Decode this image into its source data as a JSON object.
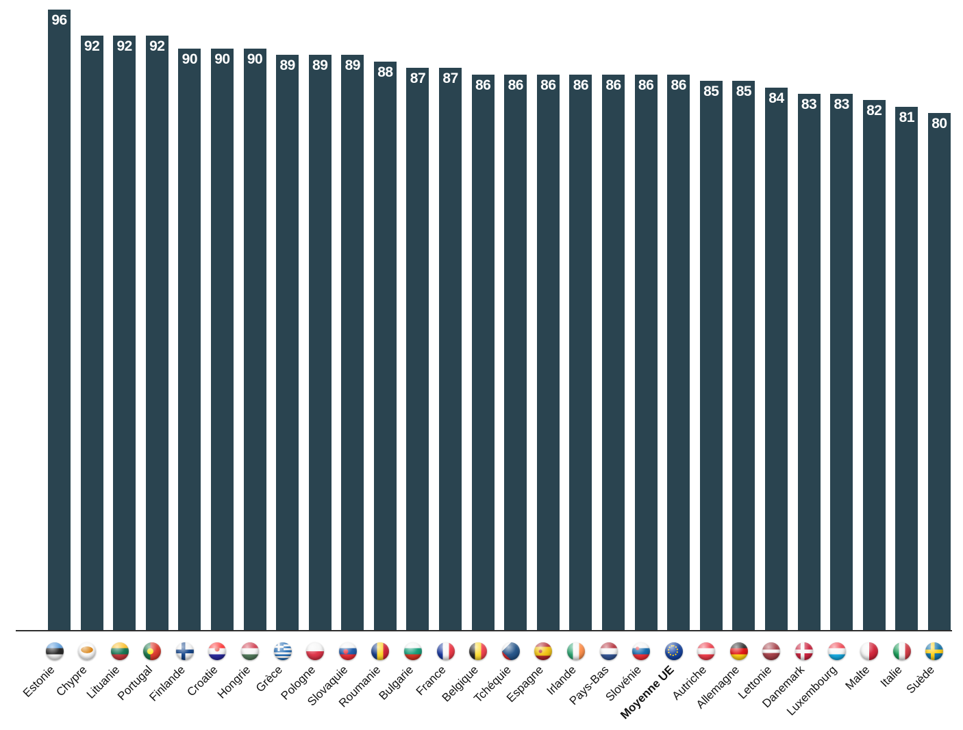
{
  "chart_data": {
    "type": "bar",
    "title": "",
    "xlabel": "",
    "ylabel": "",
    "ylim": [
      0,
      100
    ],
    "grid": false,
    "legend": null,
    "bar_color": "#2A4450",
    "value_label_color": "#FFFFFF",
    "axis_line_color": "#2E2E2E",
    "category_label_color": "#121212",
    "bold_category": "Moyenne UE",
    "categories": [
      "Estonie",
      "Chypre",
      "Lituanie",
      "Portugal",
      "Finlande",
      "Croatie",
      "Hongrie",
      "Grèce",
      "Pologne",
      "Slovaquie",
      "Roumanie",
      "Bulgarie",
      "France",
      "Belgique",
      "Tchéquie",
      "Espagne",
      "Irlande",
      "Pays-Bas",
      "Slovénie",
      "Moyenne UE",
      "Autriche",
      "Allemagne",
      "Lettonie",
      "Danemark",
      "Luxembourg",
      "Malte",
      "Italie",
      "Suède"
    ],
    "values": [
      96,
      92,
      92,
      92,
      90,
      90,
      90,
      89,
      89,
      89,
      88,
      87,
      87,
      86,
      86,
      86,
      86,
      86,
      86,
      86,
      85,
      85,
      84,
      83,
      83,
      82,
      81,
      80
    ],
    "flags": [
      {
        "country": "Estonie",
        "type": "h",
        "colors": [
          "#4891D9",
          "#141414",
          "#F5F5F5"
        ]
      },
      {
        "country": "Chypre",
        "type": "cyprus",
        "bg": "#FAFAFA",
        "emblem": "#D57800"
      },
      {
        "country": "Lituanie",
        "type": "h",
        "colors": [
          "#FDB913",
          "#006A44",
          "#C1272D"
        ]
      },
      {
        "country": "Portugal",
        "type": "v",
        "colors": [
          "#046A38",
          "#DA291C"
        ],
        "widths": [
          40,
          60
        ],
        "emblem": {
          "color": "#FFE600",
          "x": 40,
          "y": 50,
          "r": 5
        }
      },
      {
        "country": "Finlande",
        "type": "cross",
        "bg": "#F5F5F5",
        "cross": "#003580"
      },
      {
        "country": "Croatie",
        "type": "h",
        "colors": [
          "#FF2020",
          "#F5F5F5",
          "#171796"
        ],
        "emblem": {
          "color": "#E03C31",
          "x": 50,
          "y": 38,
          "r": 4
        }
      },
      {
        "country": "Hongrie",
        "type": "h",
        "colors": [
          "#CD2A3E",
          "#F5F5F5",
          "#436F4D"
        ]
      },
      {
        "country": "Grèce",
        "type": "greece",
        "blue": "#0D5EAF",
        "white": "#F5F5F5"
      },
      {
        "country": "Pologne",
        "type": "h",
        "colors": [
          "#F5F5F5",
          "#DC2339"
        ]
      },
      {
        "country": "Slovaquie",
        "type": "h",
        "colors": [
          "#F5F5F5",
          "#0B4EA2",
          "#EE1C25"
        ],
        "emblem": {
          "color": "#EE1C25",
          "x": 38,
          "y": 52,
          "r": 4
        }
      },
      {
        "country": "Roumanie",
        "type": "v",
        "colors": [
          "#002B7F",
          "#FCD116",
          "#CE1126"
        ]
      },
      {
        "country": "Bulgarie",
        "type": "h",
        "colors": [
          "#F5F5F5",
          "#00966E",
          "#D62612"
        ]
      },
      {
        "country": "France",
        "type": "v",
        "colors": [
          "#002395",
          "#F5F5F5",
          "#ED2939"
        ]
      },
      {
        "country": "Belgique",
        "type": "v",
        "colors": [
          "#141414",
          "#FDDA24",
          "#EF3340"
        ]
      },
      {
        "country": "Tchéquie",
        "type": "triangle",
        "top": "#F5F5F5",
        "bottom": "#D7141A",
        "hoist": "#11457E"
      },
      {
        "country": "Espagne",
        "type": "h",
        "colors": [
          "#AA151B",
          "#F1BF00",
          "#AA151B"
        ],
        "widths": [
          25,
          50,
          25
        ],
        "emblem": {
          "color": "#AA151B",
          "x": 35,
          "y": 50,
          "r": 3
        }
      },
      {
        "country": "Irlande",
        "type": "v",
        "colors": [
          "#169B62",
          "#F5F5F5",
          "#FF883E"
        ]
      },
      {
        "country": "Pays-Bas",
        "type": "h",
        "colors": [
          "#AE1C28",
          "#F5F5F5",
          "#21468B"
        ]
      },
      {
        "country": "Slovénie",
        "type": "h",
        "colors": [
          "#F5F5F5",
          "#005DA4",
          "#ED1C24"
        ],
        "emblem": {
          "color": "#ED1C24",
          "x": 30,
          "y": 34,
          "r": 3
        }
      },
      {
        "country": "Moyenne UE",
        "type": "eu",
        "bg": "#003399",
        "stars": "#FFCC00"
      },
      {
        "country": "Autriche",
        "type": "h",
        "colors": [
          "#ED2939",
          "#F5F5F5",
          "#ED2939"
        ]
      },
      {
        "country": "Allemagne",
        "type": "h",
        "colors": [
          "#141414",
          "#DD0000",
          "#FFCE00"
        ]
      },
      {
        "country": "Lettonie",
        "type": "h",
        "colors": [
          "#9E3039",
          "#F5F5F5",
          "#9E3039"
        ],
        "widths": [
          40,
          20,
          40
        ]
      },
      {
        "country": "Danemark",
        "type": "cross",
        "bg": "#C8102E",
        "cross": "#F5F5F5"
      },
      {
        "country": "Luxembourg",
        "type": "h",
        "colors": [
          "#EF3340",
          "#F5F5F5",
          "#00A3E0"
        ]
      },
      {
        "country": "Malte",
        "type": "v",
        "colors": [
          "#F5F5F5",
          "#CF142B"
        ]
      },
      {
        "country": "Italie",
        "type": "v",
        "colors": [
          "#009246",
          "#F5F5F5",
          "#CE2B37"
        ]
      },
      {
        "country": "Suède",
        "type": "cross",
        "bg": "#006AA7",
        "cross": "#FECC02"
      }
    ]
  }
}
